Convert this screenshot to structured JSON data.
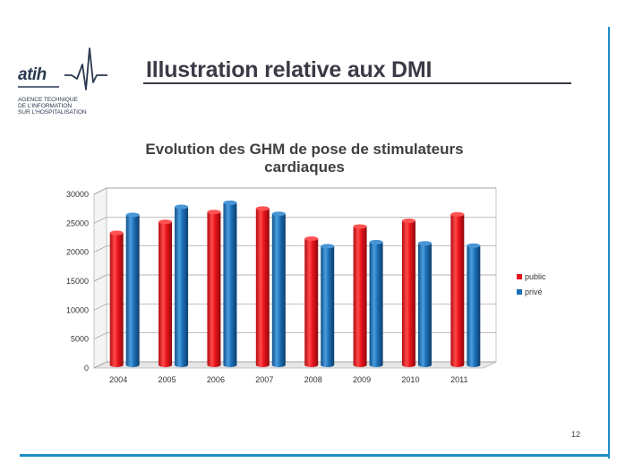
{
  "slide": {
    "title": "Illustration relative aux DMI",
    "page_number": "12",
    "accent_color": "#1f8ec9",
    "title_rule_color": "#3b3b47"
  },
  "logo": {
    "word": "atih",
    "lines": [
      "AGENCE TECHNIQUE",
      "DE L'INFORMATION",
      "SUR L'HOSPITALISATION"
    ]
  },
  "chart_data": {
    "type": "bar",
    "title": "Evolution des GHM de pose de stimulateurs cardiaques",
    "title_lines": [
      "Evolution des GHM de pose de stimulateurs",
      "cardiaques"
    ],
    "categories": [
      "2004",
      "2005",
      "2006",
      "2007",
      "2008",
      "2009",
      "2010",
      "2011"
    ],
    "series": [
      {
        "name": "public",
        "color": "#e8121b",
        "values": [
          22800,
          24700,
          26400,
          27000,
          21800,
          23900,
          24900,
          26000
        ]
      },
      {
        "name": "privé",
        "color": "#1c6eb5",
        "values": [
          25900,
          27300,
          28000,
          26100,
          20500,
          21200,
          21000,
          20600
        ]
      }
    ],
    "ylim": [
      0,
      30000
    ],
    "yticks": [
      "0",
      "5000",
      "10000",
      "15000",
      "20000",
      "25000",
      "30000"
    ],
    "grid": true,
    "legend": "right",
    "style": "3d-cylinder"
  }
}
